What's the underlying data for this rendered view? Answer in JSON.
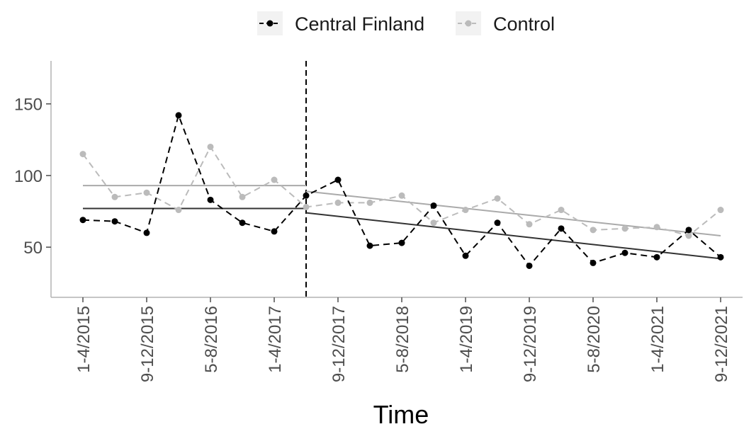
{
  "chart_data": {
    "type": "line",
    "title": "",
    "xlabel": "Time",
    "ylabel": "",
    "xlim": [
      1,
      21
    ],
    "ylim": [
      15,
      180
    ],
    "y_ticks": [
      50,
      100,
      150
    ],
    "x_tick_positions": [
      1,
      3,
      5,
      7,
      9,
      11,
      13,
      15,
      17,
      19,
      21
    ],
    "x_tick_labels": [
      "1-4/2015",
      "9-12/2015",
      "5-8/2016",
      "1-4/2017",
      "9-12/2017",
      "5-8/2018",
      "1-4/2019",
      "9-12/2019",
      "5-8/2020",
      "1-4/2021",
      "9-12/2021"
    ],
    "intervention_x": 8,
    "grid": false,
    "legend_position": "top",
    "x": [
      1,
      2,
      3,
      4,
      5,
      6,
      7,
      8,
      9,
      10,
      11,
      12,
      13,
      14,
      15,
      16,
      17,
      18,
      19,
      20,
      21
    ],
    "series": [
      {
        "name": "Central Finland",
        "color": "#000000",
        "line_style": "dashed",
        "values": [
          69,
          68,
          60,
          142,
          83,
          67,
          61,
          86,
          97,
          51,
          53,
          79,
          44,
          67,
          37,
          63,
          39,
          46,
          43,
          62,
          43
        ],
        "trend": [
          {
            "x": [
              1,
              8
            ],
            "y": [
              77,
              77
            ]
          },
          {
            "x": [
              8,
              21
            ],
            "y": [
              74,
              42
            ]
          }
        ],
        "trend_color": "#333333"
      },
      {
        "name": "Control",
        "color": "#bbbbbb",
        "line_style": "dashed",
        "values": [
          115,
          85,
          88,
          76,
          120,
          85,
          97,
          78,
          81,
          81,
          86,
          67,
          76,
          84,
          66,
          76,
          62,
          63,
          64,
          58,
          76
        ],
        "trend": [
          {
            "x": [
              1,
              8
            ],
            "y": [
              93,
              93
            ]
          },
          {
            "x": [
              8,
              21
            ],
            "y": [
              89,
              58
            ]
          }
        ],
        "trend_color": "#aaaaaa"
      }
    ]
  }
}
